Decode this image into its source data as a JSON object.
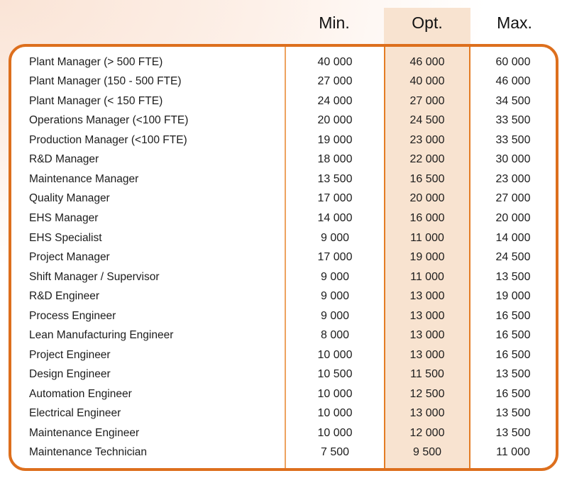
{
  "colors": {
    "accent_border": "#dd6f1d",
    "highlight_band": "#f8e3d0",
    "separator_light": "#eda25f",
    "separator_dark": "#e47c24",
    "background_tint": "#fae4d6",
    "text": "#1c1c1c"
  },
  "chart_data": {
    "type": "table",
    "columns": [
      "Min.",
      "Opt.",
      "Max."
    ],
    "highlighted_column": "Opt.",
    "rows": [
      {
        "label": "Plant Manager (> 500 FTE)",
        "min": "40 000",
        "opt": "46 000",
        "max": "60 000"
      },
      {
        "label": "Plant Manager (150 - 500 FTE)",
        "min": "27 000",
        "opt": "40 000",
        "max": "46 000"
      },
      {
        "label": "Plant Manager (< 150 FTE)",
        "min": "24 000",
        "opt": "27 000",
        "max": "34 500"
      },
      {
        "label": "Operations Manager (<100 FTE)",
        "min": "20 000",
        "opt": "24 500",
        "max": "33 500"
      },
      {
        "label": "Production Manager (<100 FTE)",
        "min": "19 000",
        "opt": "23 000",
        "max": "33 500"
      },
      {
        "label": "R&D Manager",
        "min": "18 000",
        "opt": "22 000",
        "max": "30 000"
      },
      {
        "label": "Maintenance Manager",
        "min": "13 500",
        "opt": "16 500",
        "max": "23 000"
      },
      {
        "label": "Quality Manager",
        "min": "17 000",
        "opt": "20 000",
        "max": "27 000"
      },
      {
        "label": "EHS Manager",
        "min": "14 000",
        "opt": "16 000",
        "max": "20 000"
      },
      {
        "label": "EHS Specialist",
        "min": "9 000",
        "opt": "11 000",
        "max": "14 000"
      },
      {
        "label": "Project Manager",
        "min": "17 000",
        "opt": "19 000",
        "max": "24 500"
      },
      {
        "label": "Shift Manager / Supervisor",
        "min": "9 000",
        "opt": "11 000",
        "max": "13 500"
      },
      {
        "label": "R&D Engineer",
        "min": "9 000",
        "opt": "13 000",
        "max": "19 000"
      },
      {
        "label": "Process Engineer",
        "min": "9 000",
        "opt": "13 000",
        "max": "16 500"
      },
      {
        "label": "Lean Manufacturing Engineer",
        "min": "8 000",
        "opt": "13 000",
        "max": "16 500"
      },
      {
        "label": "Project Engineer",
        "min": "10 000",
        "opt": "13 000",
        "max": "16 500"
      },
      {
        "label": "Design Engineer",
        "min": "10 500",
        "opt": "11 500",
        "max": "13 500"
      },
      {
        "label": "Automation Engineer",
        "min": "10 000",
        "opt": "12 500",
        "max": "16 500"
      },
      {
        "label": "Electrical Engineer",
        "min": "10 000",
        "opt": "13 000",
        "max": "13 500"
      },
      {
        "label": "Maintenance Engineer",
        "min": "10 000",
        "opt": "12 000",
        "max": "13 500"
      },
      {
        "label": "Maintenance Technician",
        "min": "7 500",
        "opt": "9 500",
        "max": "11 000"
      }
    ]
  }
}
